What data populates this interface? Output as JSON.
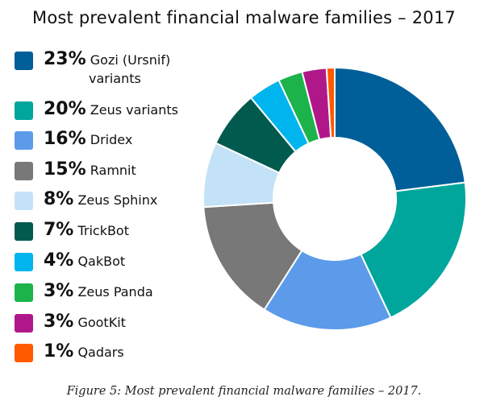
{
  "chart_data": {
    "type": "pie",
    "title": "Most prevalent financial malware families – 2017",
    "caption": "Figure 5: Most prevalent financial malware families – 2017.",
    "legend_position": "left",
    "slices": [
      {
        "label_line1": "Gozi (Ursnif)",
        "label_line2": "variants",
        "percent_label": "23%",
        "value": 23,
        "color": "#005f99"
      },
      {
        "label_line1": "Zeus variants",
        "label_line2": "",
        "percent_label": "20%",
        "value": 20,
        "color": "#00a69c"
      },
      {
        "label_line1": "Dridex",
        "label_line2": "",
        "percent_label": "16%",
        "value": 16,
        "color": "#5b9bea"
      },
      {
        "label_line1": "Ramnit",
        "label_line2": "",
        "percent_label": "15%",
        "value": 15,
        "color": "#787878"
      },
      {
        "label_line1": "Zeus Sphinx",
        "label_line2": "",
        "percent_label": "8%",
        "value": 8,
        "color": "#c4e2f7"
      },
      {
        "label_line1": "TrickBot",
        "label_line2": "",
        "percent_label": "7%",
        "value": 7,
        "color": "#005a4e"
      },
      {
        "label_line1": "QakBot",
        "label_line2": "",
        "percent_label": "4%",
        "value": 4,
        "color": "#00b4ed"
      },
      {
        "label_line1": "Zeus Panda",
        "label_line2": "",
        "percent_label": "3%",
        "value": 3,
        "color": "#1db34b"
      },
      {
        "label_line1": "GootKit",
        "label_line2": "",
        "percent_label": "3%",
        "value": 3,
        "color": "#b0188a"
      },
      {
        "label_line1": "Qadars",
        "label_line2": "",
        "percent_label": "1%",
        "value": 1,
        "color": "#ff5a00"
      }
    ]
  }
}
